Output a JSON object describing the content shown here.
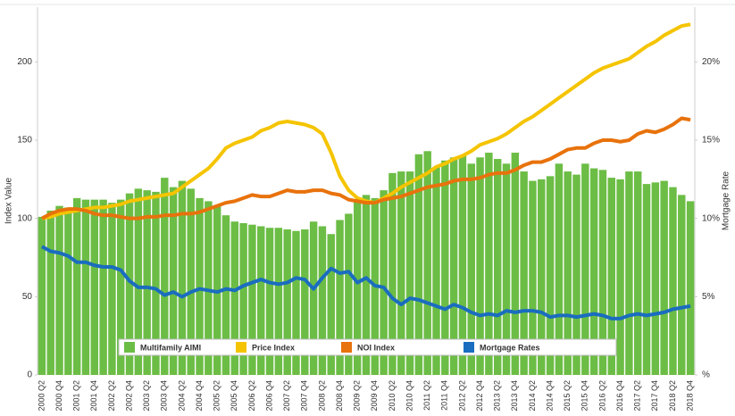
{
  "chart_data": {
    "type": "bar",
    "y_label": "Index Value",
    "y2_label": "Mortgage Rate",
    "categories": [
      "2000 Q2",
      null,
      "2000 Q4",
      null,
      "2001 Q2",
      null,
      "2001 Q4",
      null,
      "2002 Q2",
      null,
      "2002 Q4",
      null,
      "2003 Q2",
      null,
      "2003 Q4",
      null,
      "2004 Q2",
      null,
      "2004 Q4",
      null,
      "2005 Q2",
      null,
      "2005 Q4",
      null,
      "2006 Q2",
      null,
      "2006 Q4",
      null,
      "2007 Q2",
      null,
      "2007 Q4",
      null,
      "2008 Q2",
      null,
      "2008 Q4",
      null,
      "2009 Q2",
      null,
      "2009 Q4",
      null,
      "2010 Q2",
      null,
      "2010 Q4",
      null,
      "2011 Q2",
      null,
      "2011 Q4",
      null,
      "2012 Q2",
      null,
      "2012 Q4",
      null,
      "2013 Q2",
      null,
      "2013 Q4",
      null,
      "2014 Q2",
      null,
      "2014 Q4",
      null,
      "2015 Q2",
      null,
      "2015 Q4",
      null,
      "2016 Q2",
      null,
      "2016 Q4",
      null,
      "2017 Q2",
      null,
      "2017 Q4",
      null,
      "2018 Q2",
      null,
      "2018 Q4"
    ],
    "series": [
      {
        "name": "Multifamily AIMI",
        "type": "bar",
        "color": "#6cbd45",
        "values": [
          101,
          105,
          108,
          107,
          113,
          112,
          112,
          112,
          110,
          112,
          116,
          119,
          118,
          117,
          126,
          120,
          124,
          119,
          113,
          111,
          108,
          102,
          98,
          97,
          96,
          95,
          94,
          94,
          93,
          92,
          93,
          98,
          95,
          90,
          99,
          103,
          111,
          115,
          113,
          118,
          129,
          130,
          130,
          141,
          143,
          133,
          137,
          139,
          140,
          135,
          139,
          142,
          138,
          135,
          142,
          130,
          124,
          125,
          127,
          135,
          130,
          128,
          135,
          132,
          131,
          126,
          125,
          130,
          130,
          122,
          123,
          124,
          120,
          115,
          111
        ]
      },
      {
        "name": "Price Index",
        "type": "line",
        "color": "#f5c400",
        "values": [
          100,
          101,
          103,
          104,
          105,
          106,
          107,
          107,
          108,
          109,
          111,
          112,
          113,
          114,
          115,
          116,
          120,
          124,
          128,
          132,
          138,
          145,
          148,
          150,
          152,
          156,
          158,
          161,
          162,
          161,
          160,
          158,
          154,
          142,
          127,
          118,
          113,
          111,
          110,
          113,
          116,
          120,
          123,
          126,
          129,
          133,
          135,
          138,
          140,
          143,
          147,
          149,
          151,
          154,
          158,
          162,
          165,
          169,
          173,
          177,
          181,
          185,
          189,
          193,
          196,
          198,
          200,
          202,
          206,
          210,
          213,
          217,
          220,
          223,
          224
        ]
      },
      {
        "name": "NOI Index",
        "type": "line",
        "color": "#e8720c",
        "values": [
          100,
          103,
          105,
          106,
          106,
          105,
          103,
          102,
          102,
          101,
          100,
          100,
          101,
          101,
          102,
          102,
          103,
          103,
          104,
          106,
          108,
          110,
          111,
          113,
          115,
          114,
          114,
          116,
          118,
          117,
          117,
          118,
          118,
          116,
          115,
          112,
          111,
          110,
          110,
          112,
          113,
          114,
          116,
          118,
          120,
          121,
          122,
          124,
          125,
          125,
          126,
          128,
          129,
          129,
          131,
          134,
          136,
          136,
          138,
          141,
          144,
          145,
          145,
          148,
          150,
          150,
          149,
          150,
          154,
          156,
          155,
          157,
          160,
          164,
          163
        ]
      },
      {
        "name": "Mortgage Rates",
        "type": "line",
        "axis": "y2",
        "color": "#1a6dbf",
        "values": [
          8.2,
          7.9,
          7.8,
          7.6,
          7.2,
          7.2,
          7.0,
          6.9,
          6.9,
          6.7,
          6.0,
          5.6,
          5.6,
          5.5,
          5.1,
          5.3,
          5.0,
          5.3,
          5.5,
          5.4,
          5.3,
          5.5,
          5.4,
          5.7,
          5.9,
          6.1,
          5.9,
          5.8,
          5.9,
          6.2,
          6.1,
          5.5,
          6.2,
          6.8,
          6.5,
          6.6,
          5.9,
          6.2,
          5.7,
          5.6,
          4.9,
          4.5,
          4.9,
          4.8,
          4.6,
          4.4,
          4.2,
          4.5,
          4.3,
          4.0,
          3.8,
          3.9,
          3.8,
          4.1,
          4.0,
          4.1,
          4.1,
          4.0,
          3.7,
          3.8,
          3.8,
          3.7,
          3.8,
          3.9,
          3.8,
          3.6,
          3.6,
          3.8,
          3.9,
          3.8,
          3.9,
          4.0,
          4.2,
          4.3,
          4.4
        ]
      }
    ],
    "ylim": [
      0,
      235
    ],
    "yticks": [
      0,
      50,
      100,
      150,
      200
    ],
    "y2lim": [
      0,
      23.5
    ],
    "y2ticks": [
      {
        "value": 0,
        "label": "%"
      },
      {
        "value": 5,
        "label": "5%"
      },
      {
        "value": 10,
        "label": "10%"
      },
      {
        "value": 15,
        "label": "15%"
      },
      {
        "value": 20,
        "label": "20%"
      }
    ],
    "legend": "bottom"
  }
}
